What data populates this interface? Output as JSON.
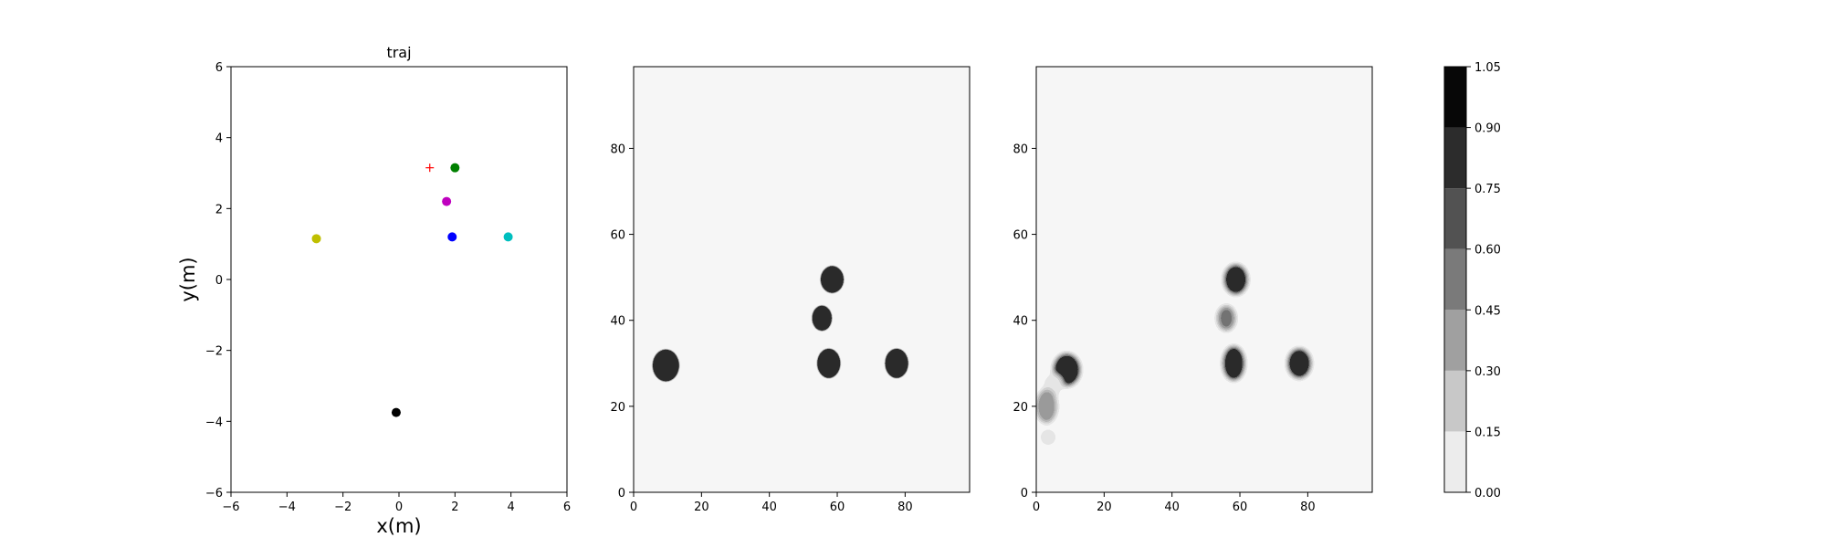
{
  "chart_data": [
    {
      "type": "scatter",
      "title": "traj",
      "xlabel": "x(m)",
      "ylabel": "y(m)",
      "xlim": [
        -6,
        6
      ],
      "ylim": [
        -6,
        6
      ],
      "xticks": [
        -6,
        -4,
        -2,
        0,
        2,
        4,
        6
      ],
      "yticks": [
        -6,
        -4,
        -2,
        0,
        2,
        4,
        6
      ],
      "xtick_labels": [
        "−6",
        "−4",
        "−2",
        "0",
        "2",
        "4",
        "6"
      ],
      "ytick_labels": [
        "−6",
        "−4",
        "−2",
        "0",
        "2",
        "4",
        "6"
      ],
      "grid": false,
      "points": [
        {
          "x": 2.0,
          "y": 3.15,
          "color": "#008000",
          "marker": "circle"
        },
        {
          "x": 1.7,
          "y": 2.2,
          "color": "#bf00bf",
          "marker": "circle"
        },
        {
          "x": 1.9,
          "y": 1.2,
          "color": "#0000ff",
          "marker": "circle"
        },
        {
          "x": 3.9,
          "y": 1.2,
          "color": "#00bfbf",
          "marker": "circle"
        },
        {
          "x": -2.95,
          "y": 1.15,
          "color": "#bfbf00",
          "marker": "circle"
        },
        {
          "x": -0.1,
          "y": -3.75,
          "color": "#000000",
          "marker": "circle"
        },
        {
          "x": 1.1,
          "y": 3.15,
          "color": "#ff0000",
          "marker": "plus"
        }
      ]
    },
    {
      "type": "heatmap",
      "title": "",
      "xlim": [
        0,
        99
      ],
      "ylim": [
        0,
        99
      ],
      "xticks": [
        0,
        20,
        40,
        60,
        80
      ],
      "yticks": [
        0,
        20,
        40,
        60,
        80
      ],
      "background_level": 0.0,
      "blobs": [
        {
          "x": 9.5,
          "y": 29.5,
          "rx": 4.0,
          "ry": 3.8,
          "value": 1.0
        },
        {
          "x": 58.5,
          "y": 49.5,
          "rx": 3.5,
          "ry": 3.2,
          "value": 1.0
        },
        {
          "x": 55.5,
          "y": 40.5,
          "rx": 3.0,
          "ry": 3.0,
          "value": 1.0
        },
        {
          "x": 57.5,
          "y": 30.0,
          "rx": 3.5,
          "ry": 3.5,
          "value": 1.0
        },
        {
          "x": 77.5,
          "y": 30.0,
          "rx": 3.5,
          "ry": 3.5,
          "value": 1.0
        }
      ]
    },
    {
      "type": "heatmap",
      "title": "",
      "xlim": [
        0,
        99
      ],
      "ylim": [
        0,
        99
      ],
      "xticks": [
        0,
        20,
        40,
        60,
        80
      ],
      "yticks": [
        0,
        20,
        40,
        60,
        80
      ],
      "background_level": 0.0,
      "blobs": [
        {
          "x": 9.0,
          "y": 28.5,
          "rx": 4.0,
          "ry": 3.8,
          "value": 1.0
        },
        {
          "x": 5.0,
          "y": 25.0,
          "rx": 3.2,
          "ry": 2.8,
          "value": 0.45
        },
        {
          "x": 3.0,
          "y": 20.0,
          "rx": 3.2,
          "ry": 4.0,
          "value": 0.8
        },
        {
          "x": 3.5,
          "y": 12.8,
          "rx": 2.5,
          "ry": 2.0,
          "value": 0.5
        },
        {
          "x": 58.8,
          "y": 49.5,
          "rx": 3.5,
          "ry": 3.5,
          "value": 1.0
        },
        {
          "x": 56.0,
          "y": 40.5,
          "rx": 2.8,
          "ry": 3.0,
          "value": 0.85
        },
        {
          "x": 58.2,
          "y": 30.0,
          "rx": 3.2,
          "ry": 4.0,
          "value": 1.0
        },
        {
          "x": 77.5,
          "y": 30.0,
          "rx": 3.5,
          "ry": 3.5,
          "value": 1.0
        }
      ]
    },
    {
      "type": "colorbar",
      "levels": [
        0.0,
        0.15,
        0.3,
        0.45,
        0.6,
        0.75,
        0.9,
        1.05
      ],
      "tick_labels": [
        "0.00",
        "0.15",
        "0.30",
        "0.45",
        "0.60",
        "0.75",
        "0.90",
        "1.05"
      ],
      "colors": [
        "#ececec",
        "#c8c8c8",
        "#a0a0a0",
        "#7a7a7a",
        "#525252",
        "#2c2c2c",
        "#070707"
      ]
    }
  ]
}
